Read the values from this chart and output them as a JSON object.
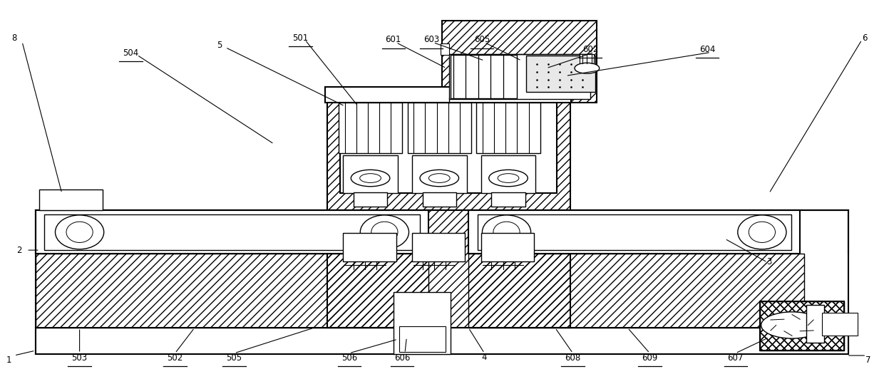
{
  "bg_color": "#ffffff",
  "line_color": "#000000",
  "fig_width": 12.4,
  "fig_height": 5.32,
  "lw": 1.0,
  "lw2": 1.5,
  "label_fs": 8.5,
  "label_positions": {
    "1": [
      0.01,
      0.05,
      false
    ],
    "2": [
      0.022,
      0.34,
      false
    ],
    "3": [
      0.87,
      0.31,
      false
    ],
    "4": [
      0.548,
      0.058,
      false
    ],
    "5": [
      0.248,
      0.88,
      false
    ],
    "6": [
      0.978,
      0.9,
      false
    ],
    "7": [
      0.982,
      0.05,
      false
    ],
    "8": [
      0.016,
      0.9,
      false
    ],
    "501": [
      0.34,
      0.9,
      true
    ],
    "502": [
      0.198,
      0.055,
      true
    ],
    "503": [
      0.09,
      0.055,
      true
    ],
    "504": [
      0.148,
      0.86,
      true
    ],
    "505": [
      0.265,
      0.055,
      true
    ],
    "506": [
      0.395,
      0.055,
      true
    ],
    "601": [
      0.445,
      0.895,
      true
    ],
    "602": [
      0.668,
      0.87,
      true
    ],
    "603": [
      0.488,
      0.895,
      true
    ],
    "604": [
      0.8,
      0.87,
      true
    ],
    "605": [
      0.545,
      0.895,
      true
    ],
    "606": [
      0.455,
      0.055,
      true
    ],
    "607": [
      0.832,
      0.055,
      true
    ],
    "608": [
      0.648,
      0.055,
      true
    ],
    "609": [
      0.735,
      0.055,
      true
    ]
  },
  "leader_lines": [
    [
      "8",
      [
        0.025,
        0.89
      ],
      [
        0.07,
        0.49
      ]
    ],
    [
      "504",
      [
        0.155,
        0.855
      ],
      [
        0.31,
        0.62
      ]
    ],
    [
      "5",
      [
        0.255,
        0.875
      ],
      [
        0.39,
        0.72
      ]
    ],
    [
      "501",
      [
        0.345,
        0.895
      ],
      [
        0.405,
        0.72
      ]
    ],
    [
      "2",
      [
        0.03,
        0.34
      ],
      [
        0.045,
        0.34
      ]
    ],
    [
      "503",
      [
        0.09,
        0.068
      ],
      [
        0.09,
        0.135
      ]
    ],
    [
      "502",
      [
        0.198,
        0.068
      ],
      [
        0.22,
        0.135
      ]
    ],
    [
      "505",
      [
        0.265,
        0.068
      ],
      [
        0.355,
        0.135
      ]
    ],
    [
      "506",
      [
        0.395,
        0.068
      ],
      [
        0.45,
        0.105
      ]
    ],
    [
      "1",
      [
        0.016,
        0.062
      ],
      [
        0.04,
        0.075
      ]
    ],
    [
      "601",
      [
        0.448,
        0.888
      ],
      [
        0.505,
        0.82
      ]
    ],
    [
      "603",
      [
        0.49,
        0.888
      ],
      [
        0.548,
        0.84
      ]
    ],
    [
      "605",
      [
        0.548,
        0.888
      ],
      [
        0.59,
        0.84
      ]
    ],
    [
      "602",
      [
        0.672,
        0.862
      ],
      [
        0.618,
        0.82
      ]
    ],
    [
      "604",
      [
        0.804,
        0.862
      ],
      [
        0.64,
        0.8
      ]
    ],
    [
      "6",
      [
        0.975,
        0.895
      ],
      [
        0.87,
        0.49
      ]
    ],
    [
      "3",
      [
        0.868,
        0.308
      ],
      [
        0.82,
        0.37
      ]
    ],
    [
      "4",
      [
        0.548,
        0.068
      ],
      [
        0.53,
        0.135
      ]
    ],
    [
      "606",
      [
        0.458,
        0.068
      ],
      [
        0.46,
        0.11
      ]
    ],
    [
      "607",
      [
        0.832,
        0.068
      ],
      [
        0.87,
        0.11
      ]
    ],
    [
      "608",
      [
        0.648,
        0.068
      ],
      [
        0.628,
        0.135
      ]
    ],
    [
      "609",
      [
        0.735,
        0.068
      ],
      [
        0.71,
        0.135
      ]
    ],
    [
      "7",
      [
        0.98,
        0.062
      ],
      [
        0.958,
        0.062
      ]
    ]
  ]
}
